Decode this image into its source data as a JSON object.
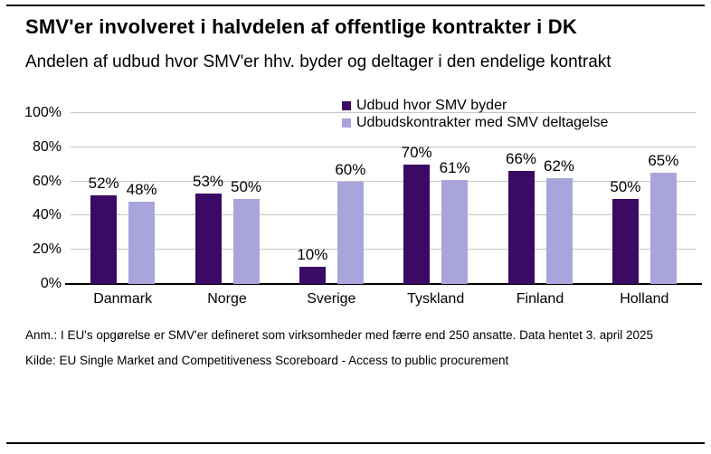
{
  "header": {
    "title": "SMV'er involveret i halvdelen af offentlige kontrakter i DK",
    "subtitle": "Andelen af udbud hvor SMV'er hhv. byder og deltager i den endelige kontrakt"
  },
  "chart_data": {
    "type": "bar",
    "categories": [
      "Danmark",
      "Norge",
      "Sverige",
      "Tyskland",
      "Finland",
      "Holland"
    ],
    "series": [
      {
        "name": "Udbud hvor SMV byder",
        "color": "#3A0A64",
        "values": [
          52,
          53,
          10,
          70,
          66,
          50
        ]
      },
      {
        "name": "Udbudskontrakter med SMV deltagelse",
        "color": "#A9A5DC",
        "values": [
          48,
          50,
          60,
          61,
          62,
          65
        ]
      }
    ],
    "ylim": [
      0,
      100
    ],
    "ytick_values": [
      0,
      20,
      40,
      60,
      80,
      100
    ],
    "ytick_suffix": "%",
    "value_label_suffix": "%",
    "grid": true,
    "legend_position": "top-right",
    "data_labels": true,
    "gridline_color": "#C6C6C6",
    "axis_color": "#000000"
  },
  "footnotes": {
    "note": "Anm.: I EU's opgørelse er SMV'er defineret som virksomheder med færre end 250 ansatte. Data hentet 3. april 2025",
    "source": "Kilde: EU Single Market and Competitiveness Scoreboard - Access to public procurement"
  }
}
